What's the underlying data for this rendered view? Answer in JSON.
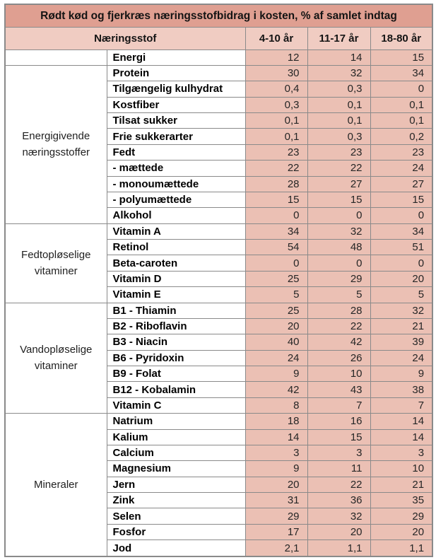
{
  "chart_data": {
    "type": "table",
    "title": "Rødt kød og fjerkræs næringsstofbidrag i kosten, % af samlet indtag",
    "columns": [
      "Næringsstof",
      "4-10 år",
      "11-17 år",
      "18-80 år"
    ],
    "unit": "% af samlet indtag",
    "groups": [
      {
        "label": "",
        "rows": [
          {
            "name": "Energi",
            "values": [
              "12",
              "14",
              "15"
            ]
          }
        ]
      },
      {
        "label": "Energigivende næringsstoffer",
        "rows": [
          {
            "name": "Protein",
            "values": [
              "30",
              "32",
              "34"
            ]
          },
          {
            "name": "Tilgængelig kulhydrat",
            "values": [
              "0,4",
              "0,3",
              "0"
            ]
          },
          {
            "name": "Kostfiber",
            "values": [
              "0,3",
              "0,1",
              "0,1"
            ]
          },
          {
            "name": "Tilsat sukker",
            "values": [
              "0,1",
              "0,1",
              "0,1"
            ]
          },
          {
            "name": "Frie sukkerarter",
            "values": [
              "0,1",
              "0,3",
              "0,2"
            ]
          },
          {
            "name": "Fedt",
            "values": [
              "23",
              "23",
              "23"
            ]
          },
          {
            "name": "- mættede",
            "values": [
              "22",
              "22",
              "24"
            ]
          },
          {
            "name": "- monoumættede",
            "values": [
              "28",
              "27",
              "27"
            ]
          },
          {
            "name": "- polyumættede",
            "values": [
              "15",
              "15",
              "15"
            ]
          },
          {
            "name": "Alkohol",
            "values": [
              "0",
              "0",
              "0"
            ]
          }
        ]
      },
      {
        "label": "Fedtopløselige vitaminer",
        "rows": [
          {
            "name": "Vitamin A",
            "values": [
              "34",
              "32",
              "34"
            ]
          },
          {
            "name": "Retinol",
            "values": [
              "54",
              "48",
              "51"
            ]
          },
          {
            "name": "Beta-caroten",
            "values": [
              "0",
              "0",
              "0"
            ]
          },
          {
            "name": "Vitamin D",
            "values": [
              "25",
              "29",
              "20"
            ]
          },
          {
            "name": "Vitamin E",
            "values": [
              "5",
              "5",
              "5"
            ]
          }
        ]
      },
      {
        "label": "Vandopløselige vitaminer",
        "rows": [
          {
            "name": "B1 - Thiamin",
            "values": [
              "25",
              "28",
              "32"
            ]
          },
          {
            "name": "B2 - Riboflavin",
            "values": [
              "20",
              "22",
              "21"
            ]
          },
          {
            "name": "B3 - Niacin",
            "values": [
              "40",
              "42",
              "39"
            ]
          },
          {
            "name": "B6 - Pyridoxin",
            "values": [
              "24",
              "26",
              "24"
            ]
          },
          {
            "name": "B9 - Folat",
            "values": [
              "9",
              "10",
              "9"
            ]
          },
          {
            "name": "B12 - Kobalamin",
            "values": [
              "42",
              "43",
              "38"
            ]
          },
          {
            "name": "Vitamin C",
            "values": [
              "8",
              "7",
              "7"
            ]
          }
        ]
      },
      {
        "label": "Mineraler",
        "rows": [
          {
            "name": "Natrium",
            "values": [
              "18",
              "16",
              "14"
            ]
          },
          {
            "name": "Kalium",
            "values": [
              "14",
              "15",
              "14"
            ]
          },
          {
            "name": "Calcium",
            "values": [
              "3",
              "3",
              "3"
            ]
          },
          {
            "name": "Magnesium",
            "values": [
              "9",
              "11",
              "10"
            ]
          },
          {
            "name": "Jern",
            "values": [
              "20",
              "22",
              "21"
            ]
          },
          {
            "name": "Zink",
            "values": [
              "31",
              "36",
              "35"
            ]
          },
          {
            "name": "Selen",
            "values": [
              "29",
              "32",
              "29"
            ]
          },
          {
            "name": "Fosfor",
            "values": [
              "17",
              "20",
              "20"
            ]
          },
          {
            "name": "Jod",
            "values": [
              "2,1",
              "1,1",
              "1,1"
            ]
          }
        ]
      }
    ]
  },
  "colors": {
    "title_bg": "#df9f91",
    "header_bg": "#f0ccc2",
    "cell_bg": "#ebc0b4",
    "border": "#8a8a8a"
  }
}
